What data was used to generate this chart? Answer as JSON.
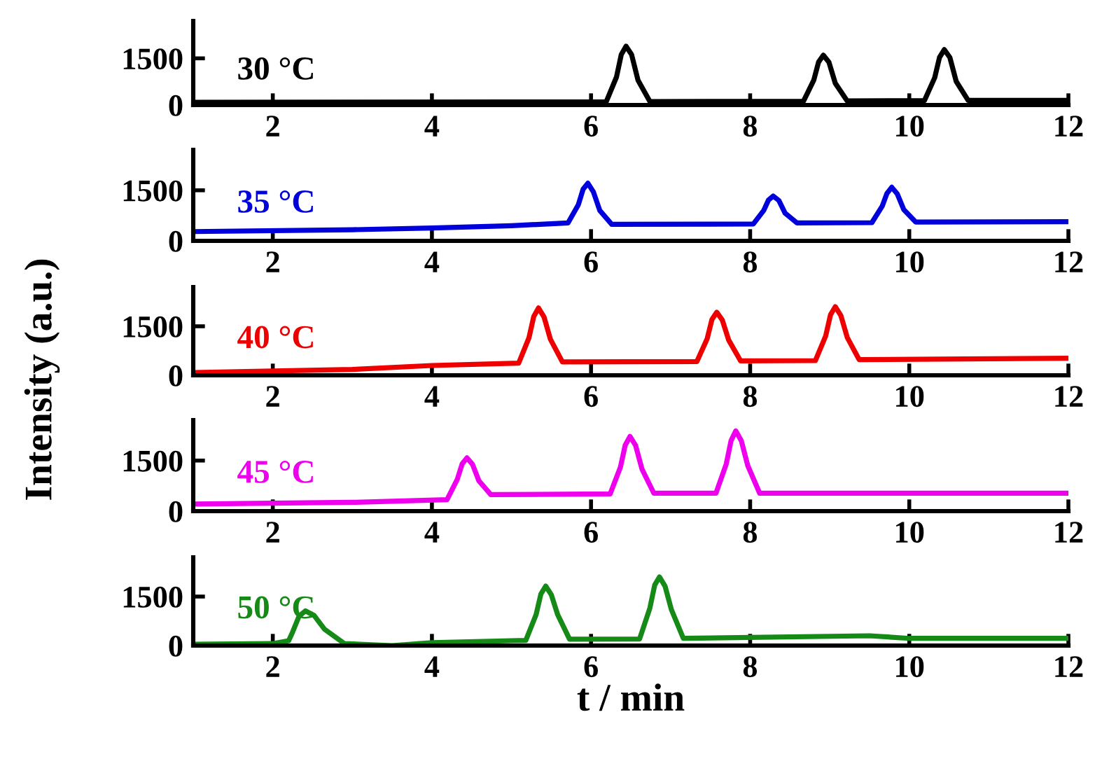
{
  "chart_data": [
    {
      "type": "line",
      "xlim": [
        1,
        12
      ],
      "xticks": [
        2,
        4,
        6,
        8,
        10,
        12
      ],
      "ylim": [
        0,
        2700
      ],
      "yticks": [
        0,
        1500
      ],
      "grid": false,
      "legend": false,
      "series": [
        {
          "name": "30 °C",
          "color": "#000000",
          "x": [
            1,
            3,
            5,
            6.19,
            6.32,
            6.38,
            6.44,
            6.51,
            6.59,
            6.74,
            8.67,
            8.8,
            8.86,
            8.92,
            8.99,
            9.07,
            9.22,
            10.19,
            10.32,
            10.38,
            10.44,
            10.51,
            10.59,
            10.74,
            12
          ],
          "values": [
            90,
            95,
            100,
            100,
            900,
            1620,
            1890,
            1620,
            800,
            110,
            120,
            800,
            1380,
            1600,
            1380,
            700,
            130,
            140,
            880,
            1530,
            1780,
            1530,
            760,
            150,
            150
          ]
        }
      ]
    },
    {
      "type": "line",
      "xlim": [
        1,
        12
      ],
      "xticks": [
        2,
        4,
        6,
        8,
        10,
        12
      ],
      "ylim": [
        0,
        2700
      ],
      "yticks": [
        0,
        1500
      ],
      "grid": false,
      "legend": false,
      "series": [
        {
          "name": "35 °C",
          "color": "#0000dd",
          "x": [
            1,
            3,
            4,
            5,
            5.71,
            5.84,
            5.9,
            5.96,
            6.03,
            6.11,
            6.26,
            8.04,
            8.17,
            8.23,
            8.29,
            8.36,
            8.44,
            8.59,
            9.53,
            9.66,
            9.72,
            9.78,
            9.85,
            9.93,
            10.08,
            12
          ],
          "values": [
            275,
            330,
            380,
            450,
            530,
            1070,
            1530,
            1710,
            1450,
            900,
            490,
            500,
            900,
            1210,
            1330,
            1200,
            820,
            530,
            540,
            1030,
            1410,
            1590,
            1390,
            930,
            560,
            570
          ]
        }
      ]
    },
    {
      "type": "line",
      "xlim": [
        1,
        12
      ],
      "xticks": [
        2,
        4,
        6,
        8,
        10,
        12
      ],
      "ylim": [
        0,
        2700
      ],
      "yticks": [
        0,
        1500
      ],
      "grid": false,
      "legend": false,
      "ylabel": "Intensity (a.u.)",
      "series": [
        {
          "name": "40 °C",
          "color": "#ee0000",
          "x": [
            1,
            3,
            4,
            5.09,
            5.22,
            5.28,
            5.34,
            5.41,
            5.49,
            5.64,
            7.33,
            7.46,
            7.52,
            7.58,
            7.65,
            7.73,
            7.88,
            8.82,
            8.95,
            9.01,
            9.07,
            9.14,
            9.22,
            9.37,
            12
          ],
          "values": [
            85,
            180,
            300,
            370,
            1150,
            1800,
            2060,
            1780,
            1100,
            410,
            420,
            1120,
            1710,
            1930,
            1690,
            1080,
            440,
            450,
            1210,
            1850,
            2100,
            1830,
            1160,
            480,
            520
          ]
        }
      ]
    },
    {
      "type": "line",
      "xlim": [
        1,
        12
      ],
      "xticks": [
        2,
        4,
        6,
        8,
        10,
        12
      ],
      "ylim": [
        0,
        2700
      ],
      "yticks": [
        0,
        1500
      ],
      "grid": false,
      "legend": false,
      "series": [
        {
          "name": "45 °C",
          "color": "#ee00ee",
          "x": [
            1,
            3,
            4.19,
            4.32,
            4.38,
            4.44,
            4.51,
            4.59,
            4.74,
            6.24,
            6.37,
            6.43,
            6.49,
            6.56,
            6.64,
            6.79,
            7.57,
            7.7,
            7.76,
            7.82,
            7.89,
            7.97,
            8.12,
            12
          ],
          "values": [
            210,
            260,
            340,
            950,
            1400,
            1580,
            1390,
            900,
            490,
            510,
            1310,
            1960,
            2215,
            1950,
            1250,
            530,
            530,
            1400,
            2090,
            2380,
            2080,
            1350,
            530,
            530
          ]
        }
      ]
    },
    {
      "type": "line",
      "xlim": [
        1,
        12
      ],
      "xticks": [
        2,
        4,
        6,
        8,
        10,
        12
      ],
      "ylim": [
        0,
        2700
      ],
      "yticks": [
        0,
        1500
      ],
      "grid": false,
      "legend": false,
      "xlabel": "t / min",
      "series": [
        {
          "name": "50 °C",
          "color": "#168a16",
          "x": [
            1,
            2,
            2.2,
            2.25,
            2.33,
            2.41,
            2.52,
            2.65,
            2.9,
            3.5,
            4,
            5,
            5.18,
            5.31,
            5.37,
            5.43,
            5.5,
            5.58,
            5.73,
            6.61,
            6.74,
            6.8,
            6.86,
            6.93,
            7.01,
            7.16,
            9.5,
            10,
            12
          ],
          "values": [
            40,
            60,
            150,
            420,
            900,
            1060,
            920,
            500,
            60,
            0,
            90,
            150,
            160,
            950,
            1580,
            1820,
            1560,
            950,
            195,
            200,
            1150,
            1850,
            2100,
            1820,
            1100,
            220,
            300,
            220,
            220
          ]
        }
      ]
    }
  ]
}
